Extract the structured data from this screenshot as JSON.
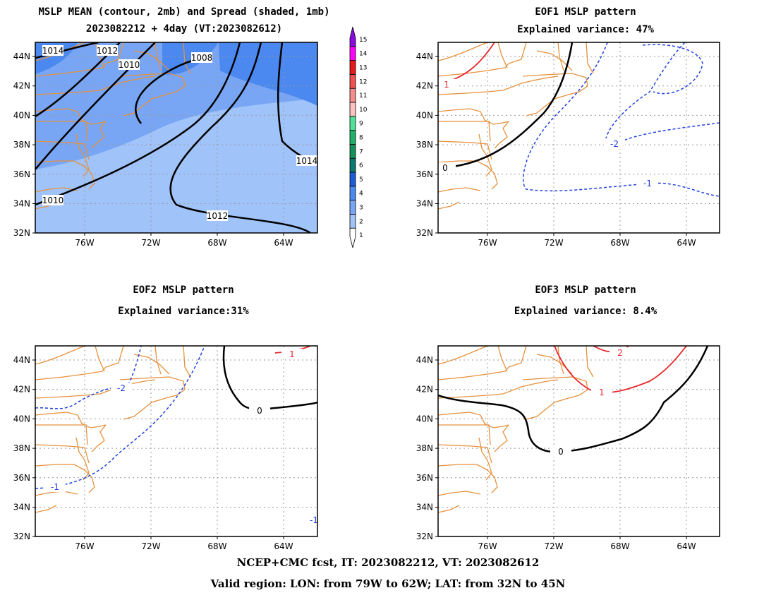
{
  "panels": {
    "mean": {
      "title_line1": "MSLP MEAN (contour, 2mb) and Spread (shaded, 1mb)",
      "title_line2": "2023082212 + 4day (VT:2023082612)",
      "contour_labels": [
        "1014",
        "1012",
        "1010",
        "1008",
        "1012",
        "1010",
        "1014"
      ]
    },
    "eof1": {
      "title_line1": "EOF1 MSLP pattern",
      "title_line2": "Explained variance: 47%",
      "contour_labels": [
        "1",
        "0",
        "-2",
        "-1"
      ]
    },
    "eof2": {
      "title_line1": "EOF2 MSLP pattern",
      "title_line2": "Explained variance:31%",
      "contour_labels": [
        "-2",
        "-1",
        "0",
        "1",
        "-1"
      ]
    },
    "eof3": {
      "title_line1": "EOF3 MSLP pattern",
      "title_line2": "Explained variance: 8.4%",
      "contour_labels": [
        "2",
        "1",
        "0"
      ]
    }
  },
  "axes": {
    "lat_labels": [
      "44N",
      "42N",
      "40N",
      "38N",
      "36N",
      "34N",
      "32N"
    ],
    "lon_labels": [
      "76W",
      "72W",
      "68W",
      "64W"
    ]
  },
  "colorbar": {
    "levels": [
      "1",
      "2",
      "3",
      "4",
      "5",
      "6",
      "7",
      "8",
      "9",
      "10",
      "11",
      "12",
      "13",
      "14",
      "15"
    ],
    "colors": [
      "#ffffff",
      "#a0c3fa",
      "#78a6f5",
      "#4b88f0",
      "#1c5cd9",
      "#0a7a6e",
      "#14915a",
      "#1fb06b",
      "#4fe099",
      "#ffc0c0",
      "#f58b8b",
      "#f05050",
      "#e61a1a",
      "#ff00ff",
      "#8a0be0"
    ]
  },
  "colors": {
    "coast": "#e6913c",
    "mean_contour": "#000000",
    "positive_contour": "#e8282c",
    "negative_contour": "#1f3fe0",
    "zero_contour": "#000000",
    "grid": "#999999"
  },
  "footer": {
    "line1": "NCEP+CMC fcst, IT: 2023082212, VT: 2023082612",
    "line2": "Valid region: LON: from 79W to 62W; LAT: from 32N to 45N"
  }
}
